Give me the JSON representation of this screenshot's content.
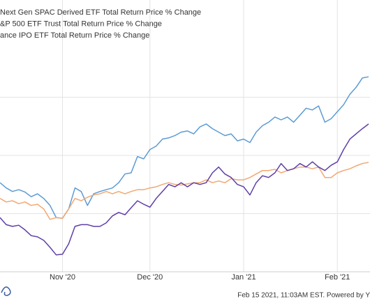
{
  "chart_data": {
    "type": "line",
    "series": [
      {
        "name": "Next Gen SPAC Derived ETF Total Return Price % Change",
        "color": "#5b9bd5",
        "values": [
          1.53,
          1.44,
          1.38,
          1.41,
          1.37,
          1.29,
          1.34,
          1.26,
          1.14,
          0.93,
          0.92,
          1.08,
          1.44,
          1.38,
          1.14,
          1.34,
          1.38,
          1.41,
          1.44,
          1.53,
          1.68,
          1.7,
          1.98,
          1.94,
          2.1,
          2.16,
          2.28,
          2.3,
          2.34,
          2.4,
          2.42,
          2.37,
          2.49,
          2.54,
          2.46,
          2.4,
          2.34,
          2.37,
          2.25,
          2.28,
          2.22,
          2.4,
          2.51,
          2.57,
          2.66,
          2.61,
          2.66,
          2.57,
          2.69,
          2.81,
          2.78,
          2.85,
          2.57,
          2.63,
          2.75,
          2.87,
          3.05,
          3.17,
          3.33,
          3.35
        ]
      },
      {
        "name": "&P 500 ETF Trust Total Return Price % Change",
        "color": "#f2a772",
        "values": [
          1.26,
          1.2,
          1.22,
          1.17,
          1.2,
          1.14,
          1.16,
          1.08,
          0.9,
          0.93,
          0.92,
          1.08,
          1.26,
          1.22,
          1.28,
          1.32,
          1.34,
          1.38,
          1.34,
          1.38,
          1.34,
          1.38,
          1.41,
          1.41,
          1.44,
          1.46,
          1.5,
          1.53,
          1.5,
          1.49,
          1.51,
          1.53,
          1.53,
          1.58,
          1.53,
          1.56,
          1.53,
          1.6,
          1.58,
          1.58,
          1.62,
          1.68,
          1.74,
          1.74,
          1.76,
          1.7,
          1.74,
          1.77,
          1.8,
          1.8,
          1.77,
          1.8,
          1.62,
          1.62,
          1.7,
          1.74,
          1.77,
          1.82,
          1.86,
          1.88
        ]
      },
      {
        "name": "ance IPO ETF Total Return Price % Change",
        "color": "#5e3ea8",
        "values": [
          0.93,
          0.81,
          0.78,
          0.8,
          0.72,
          0.62,
          0.6,
          0.54,
          0.42,
          0.29,
          0.3,
          0.48,
          0.78,
          0.81,
          0.81,
          0.78,
          0.78,
          0.84,
          0.96,
          1.02,
          0.98,
          1.1,
          1.22,
          1.16,
          1.11,
          1.26,
          1.38,
          1.5,
          1.46,
          1.53,
          1.46,
          1.53,
          1.5,
          1.53,
          1.7,
          1.8,
          1.68,
          1.62,
          1.5,
          1.46,
          1.32,
          1.53,
          1.65,
          1.62,
          1.7,
          1.86,
          1.74,
          1.77,
          1.86,
          1.8,
          1.89,
          1.8,
          1.74,
          1.83,
          1.89,
          2.1,
          2.28,
          2.37,
          2.46,
          2.54
        ]
      }
    ],
    "xlim": [
      0,
      59
    ],
    "xticks": [
      {
        "value": 10,
        "label": "Nov '20"
      },
      {
        "value": 24,
        "label": "Dec '20"
      },
      {
        "value": 39,
        "label": "Jan '21"
      },
      {
        "value": 54,
        "label": "Feb '21"
      }
    ],
    "ylim": [
      0,
      4.67
    ],
    "yticks": [
      1,
      2,
      3
    ],
    "grid": true,
    "footer": "Feb 15 2021, 11:03AM EST. Powered by Y"
  }
}
